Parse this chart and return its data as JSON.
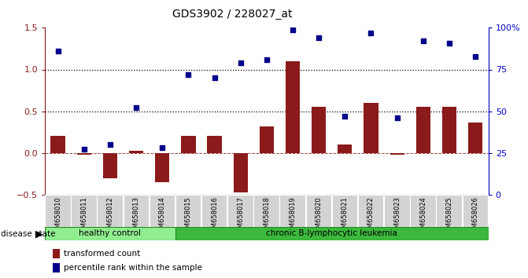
{
  "title": "GDS3902 / 228027_at",
  "samples": [
    "GSM658010",
    "GSM658011",
    "GSM658012",
    "GSM658013",
    "GSM658014",
    "GSM658015",
    "GSM658016",
    "GSM658017",
    "GSM658018",
    "GSM658019",
    "GSM658020",
    "GSM658021",
    "GSM658022",
    "GSM658023",
    "GSM658024",
    "GSM658025",
    "GSM658026"
  ],
  "transformed_count": [
    0.2,
    -0.02,
    -0.3,
    0.03,
    -0.35,
    0.2,
    0.2,
    -0.47,
    0.32,
    1.1,
    0.55,
    0.1,
    0.6,
    -0.02,
    0.55,
    0.55,
    0.36
  ],
  "percentile_rank": [
    86,
    27,
    30,
    52,
    28,
    72,
    70,
    79,
    81,
    99,
    94,
    47,
    97,
    46,
    92,
    91,
    83
  ],
  "ylim_left": [
    -0.5,
    1.5
  ],
  "ylim_right": [
    0,
    100
  ],
  "yticks_left": [
    -0.5,
    0.0,
    0.5,
    1.0,
    1.5
  ],
  "yticks_right": [
    0,
    25,
    50,
    75,
    100
  ],
  "ytick_labels_right": [
    "0",
    "25",
    "50",
    "75",
    "100%"
  ],
  "hlines_dotted": [
    0.5,
    1.0
  ],
  "bar_color": "#8B1A1A",
  "dot_color": "#00008B",
  "n_healthy": 5,
  "disease_label": "disease state",
  "healthy_label": "healthy control",
  "leukemia_label": "chronic B-lymphocytic leukemia",
  "legend_bar_label": "transformed count",
  "legend_dot_label": "percentile rank within the sample",
  "healthy_color": "#90EE90",
  "leukemia_color": "#3CB83C",
  "sample_label_bg": "#D3D3D3",
  "bg_color": "#FFFFFF",
  "left_axis_color": "#8B1A1A",
  "right_axis_color": "#0000CD"
}
